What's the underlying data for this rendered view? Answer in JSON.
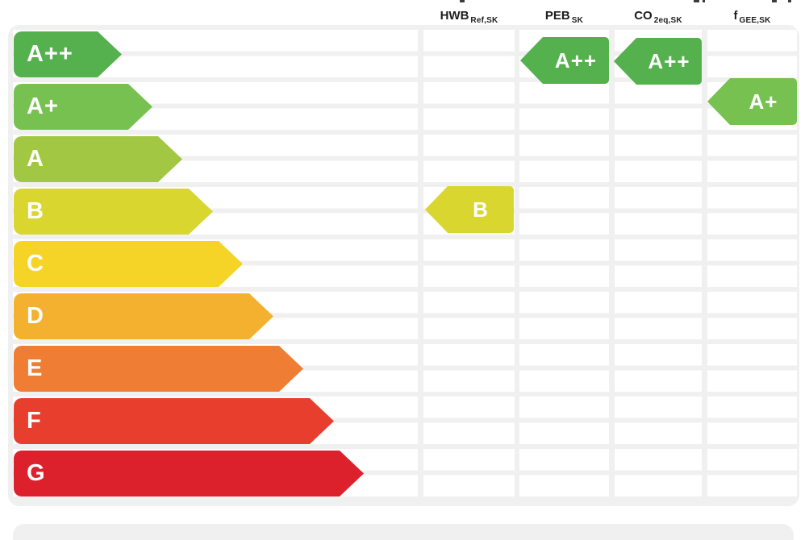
{
  "chart_data": {
    "type": "energy-label",
    "description": "Energy performance rating scale with four result columns",
    "scale": [
      {
        "label": "A++",
        "color": "#55b04e"
      },
      {
        "label": "A+",
        "color": "#77c150"
      },
      {
        "label": "A",
        "color": "#a2c843"
      },
      {
        "label": "B",
        "color": "#d9d630"
      },
      {
        "label": "C",
        "color": "#f5d327"
      },
      {
        "label": "D",
        "color": "#f4b02f"
      },
      {
        "label": "E",
        "color": "#ef7d33"
      },
      {
        "label": "F",
        "color": "#e73e2e"
      },
      {
        "label": "G",
        "color": "#dc202c"
      }
    ],
    "columns": [
      {
        "header_main": "HWB",
        "header_sub": "Ref,SK",
        "value_rating": "B",
        "value_color": "#d9d630"
      },
      {
        "header_main": "PEB",
        "header_sub": "SK",
        "value_rating": "A++",
        "value_color": "#55b04e"
      },
      {
        "header_main": "CO",
        "header_sub": "2eq,SK",
        "value_rating": "A++",
        "value_color": "#55b04e"
      },
      {
        "header_main": "f",
        "header_sub": "GEE,SK",
        "value_rating": "A+",
        "value_color": "#77c150"
      }
    ],
    "layout": {
      "legend_position": "none",
      "grid": "white cells on light gray, 2 sub-rows per rating band",
      "panel_bg": "#f0f0f1",
      "cell_bg": "#ffffff",
      "header_text_color": "#1d1d1d"
    }
  }
}
